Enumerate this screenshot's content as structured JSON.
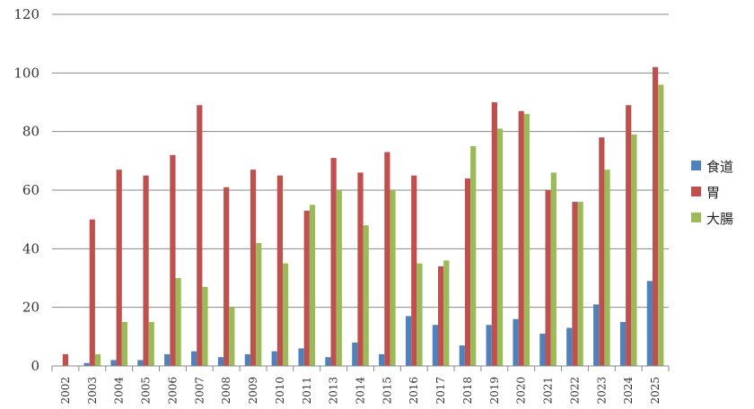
{
  "chart_data": {
    "type": "bar",
    "title": "",
    "xlabel": "",
    "ylabel": "",
    "ylim": [
      0,
      120
    ],
    "yticks": [
      0,
      20,
      40,
      60,
      80,
      100,
      120
    ],
    "grid": true,
    "legend_position": "right",
    "categories": [
      "2002",
      "2003",
      "2004",
      "2005",
      "2006",
      "2007",
      "2008",
      "2009",
      "2010",
      "2011",
      "2013",
      "2014",
      "2015",
      "2016",
      "2017",
      "2018",
      "2019",
      "2020",
      "2021",
      "2022",
      "2023",
      "2024",
      "2025"
    ],
    "series": [
      {
        "name": "食道",
        "color": "#4f81bd",
        "values": [
          0,
          1,
          2,
          2,
          4,
          5,
          3,
          4,
          5,
          6,
          3,
          8,
          4,
          17,
          14,
          7,
          14,
          16,
          11,
          13,
          21,
          15,
          29
        ]
      },
      {
        "name": "胃",
        "color": "#c0504d",
        "values": [
          4,
          50,
          67,
          65,
          72,
          89,
          61,
          67,
          65,
          53,
          71,
          66,
          73,
          65,
          34,
          64,
          90,
          87,
          60,
          56,
          78,
          89,
          102
        ]
      },
      {
        "name": "大腸",
        "color": "#9bbb59",
        "values": [
          0,
          4,
          15,
          15,
          30,
          27,
          20,
          42,
          35,
          55,
          60,
          48,
          60,
          35,
          36,
          75,
          81,
          86,
          66,
          56,
          67,
          79,
          96
        ]
      }
    ]
  }
}
